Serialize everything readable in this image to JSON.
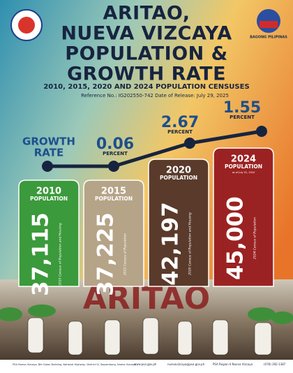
{
  "header": {
    "title_lines": [
      "ARITAO,",
      "NUEVA VIZCAYA",
      "POPULATION &",
      "GROWTH RATE"
    ],
    "subtitle": "2010, 2015, 2020 AND 2024 POPULATION CENSUSES",
    "reference": "Reference No.: IG202550-742",
    "release": "Date of Release: July 29, 2025",
    "logo_text": "BAGONG PILIPINAS"
  },
  "growth_rate": {
    "label_lines": [
      "GROWTH",
      "RATE"
    ],
    "points": [
      {
        "value": "0.06",
        "unit": "PERCENT"
      },
      {
        "value": "2.67",
        "unit": "PERCENT"
      },
      {
        "value": "1.55",
        "unit": "PERCENT"
      }
    ]
  },
  "columns": [
    {
      "year": "2010",
      "label": "POPULATION",
      "value": "37,115",
      "source": "2010 Census of Population and Housing"
    },
    {
      "year": "2015",
      "label": "POPULATION",
      "value": "37,225",
      "source": "2015 Census of Population"
    },
    {
      "year": "2020",
      "label": "POPULATION",
      "value": "42,197",
      "source": "2020 Census of Population and Housing"
    },
    {
      "year": "2024",
      "label": "POPULATION",
      "note": "as of July 01, 2024",
      "value": "45,000",
      "source": "2024 Census of Population"
    }
  ],
  "photo_sign": "ARITAO",
  "footer": {
    "address": "PSA Nueva Vizcaya, 8th Galan Building, National Highway, District IV, Bayombong, Nueva Vizcaya",
    "website": "www.psa.gov.ph",
    "email": "nuevavizcaya@psa.gov.ph",
    "facebook": "PSA Region II Nueva Vizcaya",
    "phone": "(078) 392-1387"
  }
}
